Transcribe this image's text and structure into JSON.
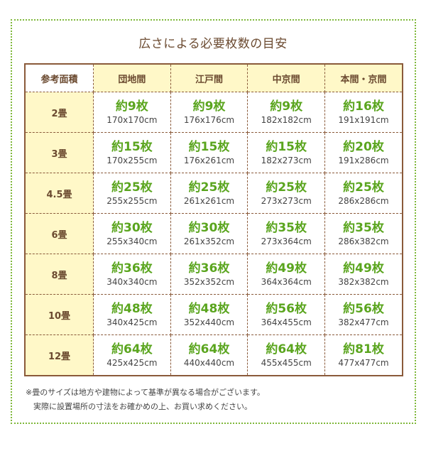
{
  "title": "広さによる必要枚数の目安",
  "headers": [
    "参考面積",
    "団地間",
    "江戸間",
    "中京間",
    "本間・京間"
  ],
  "rows": [
    {
      "area": "2畳",
      "cells": [
        {
          "count": "約9枚",
          "size": "170x170cm"
        },
        {
          "count": "約9枚",
          "size": "176x176cm"
        },
        {
          "count": "約9枚",
          "size": "182x182cm"
        },
        {
          "count": "約16枚",
          "size": "191x191cm"
        }
      ]
    },
    {
      "area": "3畳",
      "cells": [
        {
          "count": "約15枚",
          "size": "170x255cm"
        },
        {
          "count": "約15枚",
          "size": "176x261cm"
        },
        {
          "count": "約15枚",
          "size": "182x273cm"
        },
        {
          "count": "約20枚",
          "size": "191x286cm"
        }
      ]
    },
    {
      "area": "4.5畳",
      "cells": [
        {
          "count": "約25枚",
          "size": "255x255cm"
        },
        {
          "count": "約25枚",
          "size": "261x261cm"
        },
        {
          "count": "約25枚",
          "size": "273x273cm"
        },
        {
          "count": "約25枚",
          "size": "286x286cm"
        }
      ]
    },
    {
      "area": "6畳",
      "cells": [
        {
          "count": "約30枚",
          "size": "255x340cm"
        },
        {
          "count": "約30枚",
          "size": "261x352cm"
        },
        {
          "count": "約35枚",
          "size": "273x364cm"
        },
        {
          "count": "約35枚",
          "size": "286x382cm"
        }
      ]
    },
    {
      "area": "8畳",
      "cells": [
        {
          "count": "約36枚",
          "size": "340x340cm"
        },
        {
          "count": "約36枚",
          "size": "352x352cm"
        },
        {
          "count": "約49枚",
          "size": "364x364cm"
        },
        {
          "count": "約49枚",
          "size": "382x382cm"
        }
      ]
    },
    {
      "area": "10畳",
      "cells": [
        {
          "count": "約48枚",
          "size": "340x425cm"
        },
        {
          "count": "約48枚",
          "size": "352x440cm"
        },
        {
          "count": "約56枚",
          "size": "364x455cm"
        },
        {
          "count": "約56枚",
          "size": "382x477cm"
        }
      ]
    },
    {
      "area": "12畳",
      "cells": [
        {
          "count": "約64枚",
          "size": "425x425cm"
        },
        {
          "count": "約64枚",
          "size": "440x440cm"
        },
        {
          "count": "約64枚",
          "size": "455x455cm"
        },
        {
          "count": "約81枚",
          "size": "477x477cm"
        }
      ]
    }
  ],
  "notes": [
    "※畳のサイズは地方や建物によって基準が異なる場合がございます。",
    "　実際に設置場所の寸法をお確かめの上、お買い求めください。"
  ],
  "colors": {
    "accent_green": "#5aa51e",
    "header_yellow": "#fff8c8",
    "border_brown": "#8a5a3a",
    "frame_green": "#7fb83a"
  }
}
